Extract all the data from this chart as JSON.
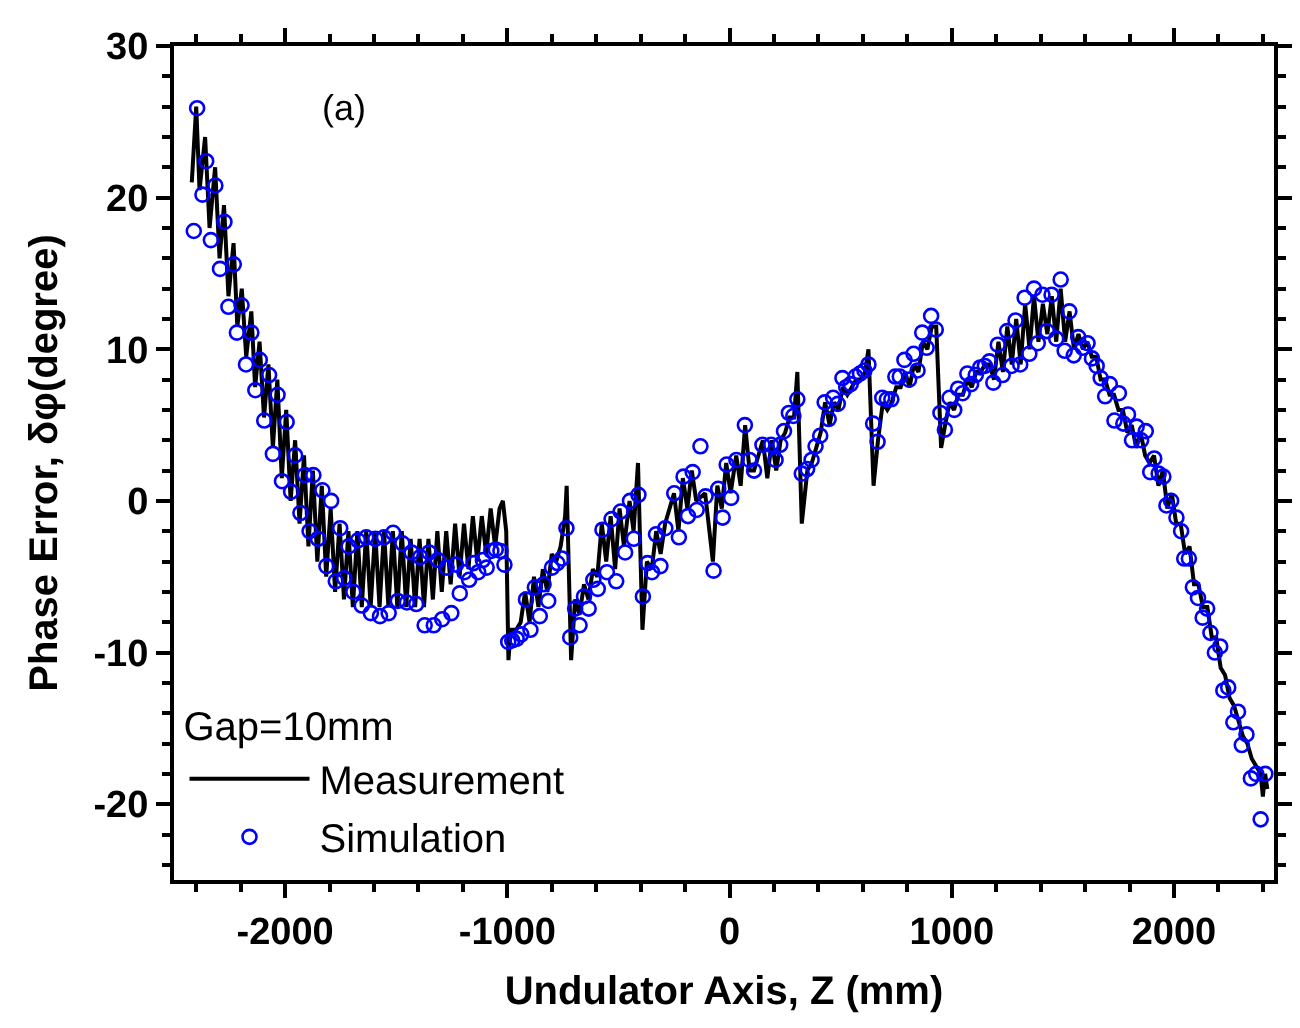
{
  "chart_data": {
    "type": "line",
    "xlabel": "Undulator Axis, Z (mm)",
    "ylabel": "Phase Error, δφ(degree)",
    "legend_title": "Gap=10mm",
    "annotations": [
      "(a)"
    ],
    "xlim": [
      -2500,
      2450
    ],
    "xticks": [
      -2000,
      -1000,
      0,
      1000,
      2000
    ],
    "ylim": [
      -25,
      30
    ],
    "yticks": [
      -20,
      -10,
      0,
      10,
      20,
      30
    ],
    "grid": false,
    "legend": "bottom left",
    "series": [
      {
        "name": "Measurement",
        "color": "#000000",
        "line_style": "solid",
        "marker": "none",
        "x": [
          -2420,
          -2400,
          -2385,
          -2360,
          -2340,
          -2315,
          -2295,
          -2275,
          -2255,
          -2232,
          -2215,
          -2195,
          -2175,
          -2152,
          -2135,
          -2115,
          -2095,
          -2075,
          -2055,
          -2035,
          -2015,
          -1995,
          -1975,
          -1955,
          -1935,
          -1915,
          -1895,
          -1875,
          -1855,
          -1835,
          -1815,
          -1795,
          -1775,
          -1755,
          -1735,
          -1715,
          -1695,
          -1675,
          -1655,
          -1635,
          -1615,
          -1595,
          -1575,
          -1555,
          -1535,
          -1515,
          -1495,
          -1475,
          -1455,
          -1435,
          -1415,
          -1395,
          -1375,
          -1355,
          -1335,
          -1315,
          -1295,
          -1275,
          -1255,
          -1235,
          -1215,
          -1195,
          -1175,
          -1155,
          -1135,
          -1115,
          -1095,
          -1075,
          -1055,
          -1035,
          -1020,
          -1005,
          -995,
          -985,
          -960,
          -940,
          -920,
          -900,
          -880,
          -860,
          -840,
          -820,
          -800,
          -780,
          -760,
          -740,
          -733,
          -713,
          -695,
          -675,
          -655,
          -635,
          -615,
          -595,
          -575,
          -555,
          -535,
          -515,
          -495,
          -475,
          -450,
          -432,
          -412,
          -392,
          -372,
          -350,
          -330,
          -310,
          -290,
          -250,
          -230,
          -210,
          -190,
          -170,
          -150,
          -110,
          -75,
          -55,
          -35,
          -15,
          5,
          30,
          50,
          70,
          90,
          110,
          150,
          170,
          190,
          210,
          230,
          250,
          270,
          290,
          305,
          325,
          350,
          370,
          390,
          410,
          430,
          450,
          470,
          490,
          510,
          530,
          550,
          570,
          590,
          610,
          625,
          648,
          668,
          690,
          710,
          730,
          750,
          770,
          790,
          810,
          830,
          850,
          870,
          890,
          910,
          930,
          952,
          970,
          990,
          1010,
          1030,
          1050,
          1070,
          1090,
          1110,
          1130,
          1150,
          1170,
          1190,
          1210,
          1230,
          1250,
          1270,
          1290,
          1310,
          1330,
          1350,
          1370,
          1390,
          1410,
          1430,
          1450,
          1470,
          1490,
          1510,
          1530,
          1550,
          1570,
          1590,
          1610,
          1630,
          1650,
          1670,
          1690,
          1710,
          1730,
          1750,
          1770,
          1790,
          1810,
          1830,
          1850,
          1870,
          1890,
          1910,
          1930,
          1950,
          1970,
          1990,
          2010,
          2030,
          2050,
          2070,
          2090,
          2110,
          2130,
          2150,
          2170,
          2190,
          2210,
          2230,
          2250,
          2270,
          2290,
          2310,
          2330,
          2350,
          2370,
          2390,
          2400,
          2410,
          2420
        ],
        "values": [
          21,
          26,
          20.5,
          24,
          18,
          22,
          16,
          19.5,
          13.5,
          17,
          11.5,
          14,
          9.5,
          12.5,
          7.5,
          10.5,
          5.5,
          9,
          3.5,
          8,
          1.5,
          6,
          0,
          4,
          -1.5,
          3,
          -3,
          2,
          -4,
          1,
          -5,
          -0.5,
          -6,
          -1.5,
          -6.5,
          -2,
          -7,
          -2,
          -7,
          -2,
          -7,
          -2,
          -7,
          -2,
          -7,
          -2,
          -7,
          -2,
          -7,
          -2.5,
          -7,
          -2.5,
          -7,
          -2.5,
          -6.5,
          -2,
          -6,
          -2,
          -5.5,
          -1.5,
          -5,
          -1.5,
          -4.5,
          -1,
          -4,
          -1,
          -3.5,
          -0.5,
          -3,
          -0.5,
          0,
          -2,
          -10.5,
          -8.5,
          -8.5,
          -8,
          -6,
          -8,
          -5,
          -7,
          -4.5,
          -6,
          -3.5,
          -4,
          -3,
          -1,
          1,
          -10.5,
          -6.5,
          -7.5,
          -5.5,
          -6.5,
          -4.5,
          -5,
          -1.5,
          -4,
          -1,
          -4.5,
          -0.5,
          -3,
          0,
          -2,
          2.5,
          -8.5,
          -4,
          -4.5,
          -2,
          -3.5,
          -1.5,
          0.5,
          -2,
          1.5,
          -0.5,
          2,
          0,
          0.5,
          -4,
          1,
          -0.5,
          2.5,
          0.5,
          3,
          1,
          5,
          2,
          2,
          4,
          1.5,
          4,
          2,
          4,
          4.5,
          5.5,
          5.5,
          8.5,
          -1.5,
          2,
          2.5,
          3.5,
          4.5,
          6.5,
          5,
          6.5,
          6,
          7.5,
          7,
          7.5,
          8,
          8,
          8.5,
          10,
          1,
          4,
          6.5,
          6,
          6.5,
          7.5,
          7.5,
          8.5,
          7.5,
          9,
          8.5,
          10.5,
          10,
          11.5,
          11.5,
          3.5,
          5,
          6.5,
          6,
          7,
          7,
          8,
          7.5,
          8.5,
          8.5,
          9,
          9,
          8,
          10.5,
          8.5,
          11.5,
          9,
          12,
          9,
          13,
          10,
          13.5,
          10.5,
          13,
          11,
          13.5,
          10.5,
          14,
          10.5,
          12.5,
          10,
          11,
          10,
          10.5,
          9.5,
          9.5,
          8,
          8,
          7,
          7,
          6,
          6,
          4.5,
          5,
          3.5,
          4.5,
          3,
          2.5,
          3,
          1,
          2,
          -0.5,
          0.5,
          -1.5,
          -1.5,
          -3.5,
          -3,
          -5.5,
          -5.5,
          -7,
          -7,
          -9,
          -9,
          -11,
          -11.5,
          -13,
          -13.5,
          -14.5,
          -15.5,
          -16,
          -17,
          -17.5,
          -18,
          -19.5,
          -18,
          -19
        ]
      },
      {
        "name": "Simulation",
        "type": "scatter",
        "color": "#0000ff",
        "marker": "circle",
        "x": [
          -2411,
          -2396,
          -2372,
          -2355,
          -2334,
          -2314,
          -2293,
          -2273,
          -2255,
          -2231,
          -2217,
          -2196,
          -2176,
          -2152,
          -2134,
          -2114,
          -2094,
          -2072,
          -2055,
          -2034,
          -2014,
          -1993,
          -1973,
          -1955,
          -1931,
          -1911,
          -1890,
          -1873,
          -1852,
          -1832,
          -1814,
          -1793,
          -1772,
          -1752,
          -1734,
          -1714,
          -1693,
          -1672,
          -1655,
          -1635,
          -1614,
          -1594,
          -1573,
          -1555,
          -1534,
          -1514,
          -1493,
          -1472,
          -1452,
          -1431,
          -1410,
          -1392,
          -1372,
          -1352,
          -1331,
          -1313,
          -1293,
          -1273,
          -1252,
          -1231,
          -1214,
          -1193,
          -1172,
          -1152,
          -1131,
          -1110,
          -1093,
          -1072,
          -1052,
          -1031,
          -1013,
          -996,
          -978,
          -958,
          -937,
          -916,
          -896,
          -876,
          -854,
          -837,
          -816,
          -799,
          -775,
          -755,
          -734,
          -717,
          -695,
          -675,
          -655,
          -634,
          -613,
          -593,
          -572,
          -552,
          -531,
          -510,
          -490,
          -470,
          -448,
          -431,
          -410,
          -390,
          -369,
          -349,
          -331,
          -311,
          -289,
          -249,
          -228,
          -207,
          -187,
          -166,
          -148,
          -131,
          -108,
          -72,
          -51,
          -31,
          -13,
          7,
          31,
          69,
          90,
          110,
          148,
          187,
          207,
          228,
          245,
          267,
          287,
          305,
          325,
          349,
          369,
          387,
          408,
          428,
          446,
          466,
          487,
          508,
          525,
          545,
          567,
          587,
          607,
          625,
          646,
          666,
          687,
          708,
          728,
          746,
          766,
          787,
          808,
          828,
          846,
          867,
          887,
          907,
          928,
          949,
          969,
          990,
          1011,
          1028,
          1049,
          1070,
          1087,
          1108,
          1128,
          1149,
          1169,
          1187,
          1207,
          1229,
          1249,
          1269,
          1287,
          1308,
          1328,
          1349,
          1370,
          1387,
          1408,
          1428,
          1449,
          1470,
          1490,
          1508,
          1529,
          1549,
          1569,
          1590,
          1611,
          1631,
          1652,
          1670,
          1690,
          1711,
          1732,
          1752,
          1772,
          1793,
          1811,
          1832,
          1852,
          1873,
          1893,
          1911,
          1931,
          1952,
          1966,
          1987,
          2011,
          2032,
          2046,
          2067,
          2085,
          2108,
          2129,
          2149,
          2164,
          2184,
          2208,
          2222,
          2244,
          2267,
          2288,
          2305,
          2326,
          2346,
          2370,
          2390,
          2411
        ],
        "values": [
          17.8,
          25.9,
          20.2,
          22.4,
          17.2,
          20.8,
          15.3,
          18.4,
          12.8,
          15.6,
          11.1,
          12.9,
          9,
          11.1,
          7.3,
          9.3,
          5.3,
          8.3,
          3.1,
          7,
          1.3,
          5.2,
          0.6,
          3,
          -0.8,
          1.7,
          -2,
          1.7,
          -2.5,
          0.7,
          -4.3,
          0,
          -5.3,
          -1.8,
          -5.1,
          -3,
          -6,
          -2.6,
          -6.9,
          -2.4,
          -7.4,
          -2.5,
          -7.6,
          -2.4,
          -7.4,
          -2.1,
          -6.6,
          -2.8,
          -6.7,
          -3.4,
          -6.8,
          -3.7,
          -8.2,
          -3.4,
          -8.2,
          -3.9,
          -7.8,
          -4.4,
          -7.4,
          -4.2,
          -6.1,
          -4.7,
          -5.2,
          -4.1,
          -4.7,
          -3.9,
          -4.4,
          -3.3,
          -3.2,
          -3.3,
          -4.2,
          -9.3,
          -9.2,
          -9.1,
          -8.8,
          -6.5,
          -8.5,
          -5.7,
          -7.6,
          -5.5,
          -6.6,
          -4.4,
          -4.1,
          -3.8,
          -1.8,
          -9,
          -7.1,
          -8.2,
          -6.3,
          -7.1,
          -5.2,
          -5.8,
          -1.9,
          -4.7,
          -1.2,
          -5.3,
          -0.7,
          -3.4,
          0,
          -2.5,
          0.4,
          -6.3,
          -4.1,
          -4.7,
          -2.2,
          -4.3,
          -1.8,
          0.5,
          -2.4,
          1.6,
          -1,
          1.9,
          -0.6,
          3.6,
          0.3,
          -4.6,
          0.8,
          -1.1,
          2.4,
          0.2,
          2.7,
          5,
          2.7,
          2,
          3.7,
          3.7,
          2.7,
          3.7,
          4.6,
          5.8,
          5.6,
          6.7,
          1.8,
          2.1,
          2.7,
          3.6,
          4.3,
          6.5,
          5.4,
          6.8,
          6.4,
          8.1,
          7.5,
          7.7,
          8.2,
          8.4,
          8.6,
          9,
          5.1,
          3.9,
          6.8,
          6.7,
          6.7,
          8.2,
          8.2,
          9.3,
          8,
          9.7,
          8.6,
          11.1,
          10.1,
          12.2,
          11.3,
          5.8,
          4.7,
          6.8,
          6,
          7.4,
          7.1,
          8.4,
          7.7,
          8.3,
          8.8,
          8.9,
          9.2,
          7.8,
          10.3,
          8.3,
          11.2,
          8.9,
          11.9,
          9,
          13.4,
          9.7,
          14,
          10.4,
          13.6,
          11.2,
          13.6,
          10.7,
          14.6,
          9.9,
          12.5,
          9.6,
          10.8,
          10.1,
          10.4,
          9.4,
          8.9,
          8.1,
          6.9,
          7.7,
          5.3,
          7.1,
          5.1,
          5.7,
          4,
          4.9,
          4,
          4.6,
          1.9,
          2.8,
          1.8,
          1.6,
          -0.3,
          0,
          -1.1,
          -2,
          -3.8,
          -3.8,
          -5.7,
          -6.4,
          -7.7,
          -7.1,
          -8.7,
          -10,
          -9.6,
          -12.5,
          -12.3,
          -14.6,
          -13.9,
          -16.1,
          -15.4,
          -18.3,
          -18,
          -21,
          -18
        ]
      }
    ]
  }
}
